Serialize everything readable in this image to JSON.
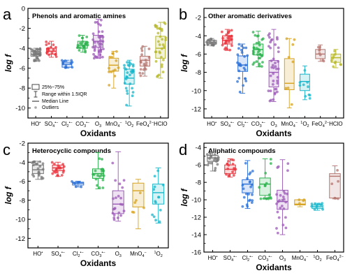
{
  "panels": [
    {
      "letter": "a",
      "title": "Phenols and aromatic amines",
      "ylabel": "log f",
      "xlabel": "Oxidants",
      "yticks": [
        "-10",
        "-8",
        "-6",
        "-4",
        "-2",
        "0"
      ],
      "xticks": [
        "HO•",
        "SO4•−",
        "Cl2•−",
        "CO3•−",
        "O3",
        "MnO4−",
        "1O2",
        "FeO4 2−",
        "HClO"
      ],
      "legend": [
        "25%~75%",
        "Range within 1.5IQR",
        "Median Line",
        "Outliers"
      ]
    },
    {
      "letter": "b",
      "title": "Other aromatic derivatives",
      "ylabel": "log f",
      "xlabel": "Oxidants",
      "yticks": [
        "-12",
        "-10",
        "-8",
        "-6",
        "-4",
        "-2"
      ],
      "xticks": [
        "HO•",
        "SO4•−",
        "Cl2•−",
        "CO3•−",
        "O3",
        "MnO4−",
        "1O2",
        "FeO4 2−",
        "HClO"
      ]
    },
    {
      "letter": "c",
      "title": "Heterocyclic compounds",
      "ylabel": "log f",
      "xlabel": "Oxidants",
      "yticks": [
        "-12",
        "-10",
        "-8",
        "-6",
        "-4",
        "-2"
      ],
      "xticks": [
        "HO•",
        "SO4•−",
        "Cl2•−",
        "CO3•−",
        "O3",
        "MnO4−",
        "1O2"
      ]
    },
    {
      "letter": "d",
      "title": "Aliphatic compounds",
      "ylabel": "log f",
      "xlabel": "Oxidants",
      "yticks": [
        "-16",
        "-14",
        "-12",
        "-10",
        "-8",
        "-6",
        "-4"
      ],
      "xticks": [
        "HO•",
        "SO4•−",
        "Cl2•−",
        "CO3•−",
        "O3",
        "MnO4−",
        "1O2",
        "FeO4 2−"
      ]
    }
  ],
  "chart_data": [
    {
      "type": "box",
      "panel": "a",
      "title": "Phenols and aromatic amines",
      "xlabel": "Oxidants",
      "ylabel": "log f",
      "ylim": [
        -11,
        0
      ],
      "categories": [
        "HO•",
        "SO4•−",
        "Cl2•−",
        "CO3•−",
        "O3",
        "MnO4−",
        "1O2",
        "FeO4 2−",
        "HClO"
      ],
      "boxes": [
        {
          "color": "#777777",
          "whisker_low": -5.3,
          "q1": -4.8,
          "median": -4.6,
          "q3": -4.3,
          "whisker_high": -4.0,
          "points": 28
        },
        {
          "color": "#e8333c",
          "whisker_low": -4.9,
          "q1": -4.6,
          "median": -4.3,
          "q3": -4.0,
          "whisker_high": -3.3,
          "points": 18
        },
        {
          "color": "#2a6fd6",
          "whisker_low": -6.0,
          "q1": -5.9,
          "median": -5.6,
          "q3": -5.4,
          "whisker_high": -5.2,
          "points": 12
        },
        {
          "color": "#2bb24c",
          "whisker_low": -4.4,
          "q1": -4.0,
          "median": -3.7,
          "q3": -3.3,
          "whisker_high": -2.7,
          "points": 24
        },
        {
          "color": "#9b59b6",
          "whisker_low": -5.0,
          "q1": -3.9,
          "median": -3.3,
          "q3": -2.7,
          "whisker_high": -1.1,
          "points": 42
        },
        {
          "color": "#d6a21e",
          "whisker_low": -8.0,
          "q1": -6.3,
          "median": -5.7,
          "q3": -5.0,
          "whisker_high": -4.3,
          "points": 14
        },
        {
          "color": "#17b5c9",
          "whisker_low": -9.8,
          "q1": -7.6,
          "median": -7.0,
          "q3": -6.1,
          "whisker_high": -5.2,
          "points": 30
        },
        {
          "color": "#b4756f",
          "whisker_low": -6.8,
          "q1": -5.8,
          "median": -5.2,
          "q3": -4.8,
          "whisker_high": -3.8,
          "points": 20
        },
        {
          "color": "#b7b82a",
          "whisker_low": -7.0,
          "q1": -5.0,
          "median": -4.0,
          "q3": -2.8,
          "whisker_high": -1.4,
          "points": 34
        }
      ]
    },
    {
      "type": "box",
      "panel": "b",
      "title": "Other aromatic derivatives",
      "xlabel": "Oxidants",
      "ylabel": "log f",
      "ylim": [
        -13,
        -1
      ],
      "categories": [
        "HO•",
        "SO4•−",
        "Cl2•−",
        "CO3•−",
        "O3",
        "MnO4−",
        "1O2",
        "FeO4 2−",
        "HClO"
      ],
      "boxes": [
        {
          "color": "#777777",
          "whisker_low": -5.1,
          "q1": -4.9,
          "median": -4.7,
          "q3": -4.5,
          "whisker_high": -4.3,
          "points": 16
        },
        {
          "color": "#e8333c",
          "whisker_low": -5.6,
          "q1": -4.9,
          "median": -4.5,
          "q3": -4.0,
          "whisker_high": -3.3,
          "points": 26
        },
        {
          "color": "#2a6fd6",
          "whisker_low": -10.3,
          "q1": -7.9,
          "median": -7.2,
          "q3": -6.2,
          "whisker_high": -4.9,
          "points": 26
        },
        {
          "color": "#2bb24c",
          "whisker_low": -7.4,
          "q1": -6.1,
          "median": -5.5,
          "q3": -4.9,
          "whisker_high": -3.5,
          "points": 32
        },
        {
          "color": "#9b59b6",
          "whisker_low": -11.2,
          "q1": -9.6,
          "median": -8.0,
          "q3": -6.7,
          "whisker_high": -3.3,
          "points": 40
        },
        {
          "color": "#d6a21e",
          "whisker_low": -11.9,
          "q1": -9.9,
          "median": -9.2,
          "q3": -6.5,
          "whisker_high": -4.3,
          "points": 8
        },
        {
          "color": "#17b5c9",
          "whisker_low": -11.0,
          "q1": -10.0,
          "median": -9.0,
          "q3": -8.2,
          "whisker_high": -7.3,
          "points": 10
        },
        {
          "color": "#b4756f",
          "whisker_low": -6.8,
          "q1": -6.5,
          "median": -6.0,
          "q3": -5.5,
          "whisker_high": -5.0,
          "points": 8
        },
        {
          "color": "#b7b82a",
          "whisker_low": -7.5,
          "q1": -6.9,
          "median": -6.4,
          "q3": -6.0,
          "whisker_high": -5.5,
          "points": 10
        }
      ]
    },
    {
      "type": "box",
      "panel": "c",
      "title": "Heterocyclic compounds",
      "xlabel": "Oxidants",
      "ylabel": "log f",
      "ylim": [
        -13,
        -2
      ],
      "categories": [
        "HO•",
        "SO4•−",
        "Cl2•−",
        "CO3•−",
        "O3",
        "MnO4−",
        "1O2"
      ],
      "boxes": [
        {
          "color": "#777777",
          "whisker_low": -5.8,
          "q1": -5.2,
          "median": -4.8,
          "q3": -4.3,
          "whisker_high": -3.9,
          "points": 22
        },
        {
          "color": "#e8333c",
          "whisker_low": -5.5,
          "q1": -4.9,
          "median": -4.6,
          "q3": -4.3,
          "whisker_high": -4.0,
          "points": 20
        },
        {
          "color": "#2a6fd6",
          "whisker_low": -6.6,
          "q1": -6.4,
          "median": -6.2,
          "q3": -6.1,
          "whisker_high": -6.0,
          "points": 6
        },
        {
          "color": "#2bb24c",
          "whisker_low": -6.8,
          "q1": -5.7,
          "median": -5.2,
          "q3": -4.7,
          "whisker_high": -3.0,
          "points": 18
        },
        {
          "color": "#9b59b6",
          "whisker_low": -10.2,
          "q1": -9.4,
          "median": -8.4,
          "q3": -7.0,
          "whisker_high": -2.9,
          "points": 22
        },
        {
          "color": "#d6a21e",
          "whisker_low": -11.0,
          "q1": -8.7,
          "median": -7.0,
          "q3": -6.2,
          "whisker_high": -5.8,
          "points": 6
        },
        {
          "color": "#17b5c9",
          "whisker_low": -10.4,
          "q1": -8.4,
          "median": -7.2,
          "q3": -6.3,
          "whisker_high": -4.6,
          "points": 14
        }
      ]
    },
    {
      "type": "box",
      "panel": "d",
      "title": "Aliphatic compounds",
      "xlabel": "Oxidants",
      "ylabel": "log f",
      "ylim": [
        -16,
        -3.5
      ],
      "categories": [
        "HO•",
        "SO4•−",
        "Cl2•−",
        "CO3•−",
        "O3",
        "MnO4−",
        "1O2",
        "FeO4 2−"
      ],
      "boxes": [
        {
          "color": "#777777",
          "whisker_low": -6.7,
          "q1": -5.6,
          "median": -5.2,
          "q3": -4.9,
          "whisker_high": -4.5,
          "points": 20
        },
        {
          "color": "#e8333c",
          "whisker_low": -7.4,
          "q1": -7.0,
          "median": -6.5,
          "q3": -6.0,
          "whisker_high": -5.3,
          "points": 16
        },
        {
          "color": "#2a6fd6",
          "whisker_low": -11.0,
          "q1": -9.2,
          "median": -8.2,
          "q3": -7.7,
          "whisker_high": -5.5,
          "points": 22
        },
        {
          "color": "#2bb24c",
          "whisker_low": -9.9,
          "q1": -9.5,
          "median": -8.2,
          "q3": -7.5,
          "whisker_high": -5.3,
          "points": 16
        },
        {
          "color": "#9b59b6",
          "whisker_low": -14.0,
          "q1": -11.1,
          "median": -10.2,
          "q3": -8.9,
          "whisker_high": -5.4,
          "points": 26
        },
        {
          "color": "#d6a21e",
          "whisker_low": -10.8,
          "q1": -10.6,
          "median": -10.5,
          "q3": -10.0,
          "whisker_high": -10.0,
          "points": 4
        },
        {
          "color": "#17b5c9",
          "whisker_low": -11.2,
          "q1": -11.0,
          "median": -10.8,
          "q3": -10.6,
          "whisker_high": -10.4,
          "points": 10
        },
        {
          "color": "#b4756f",
          "whisker_low": -9.9,
          "q1": -9.8,
          "median": -7.3,
          "q3": -7.0,
          "whisker_high": -6.1,
          "points": 6
        }
      ]
    }
  ]
}
